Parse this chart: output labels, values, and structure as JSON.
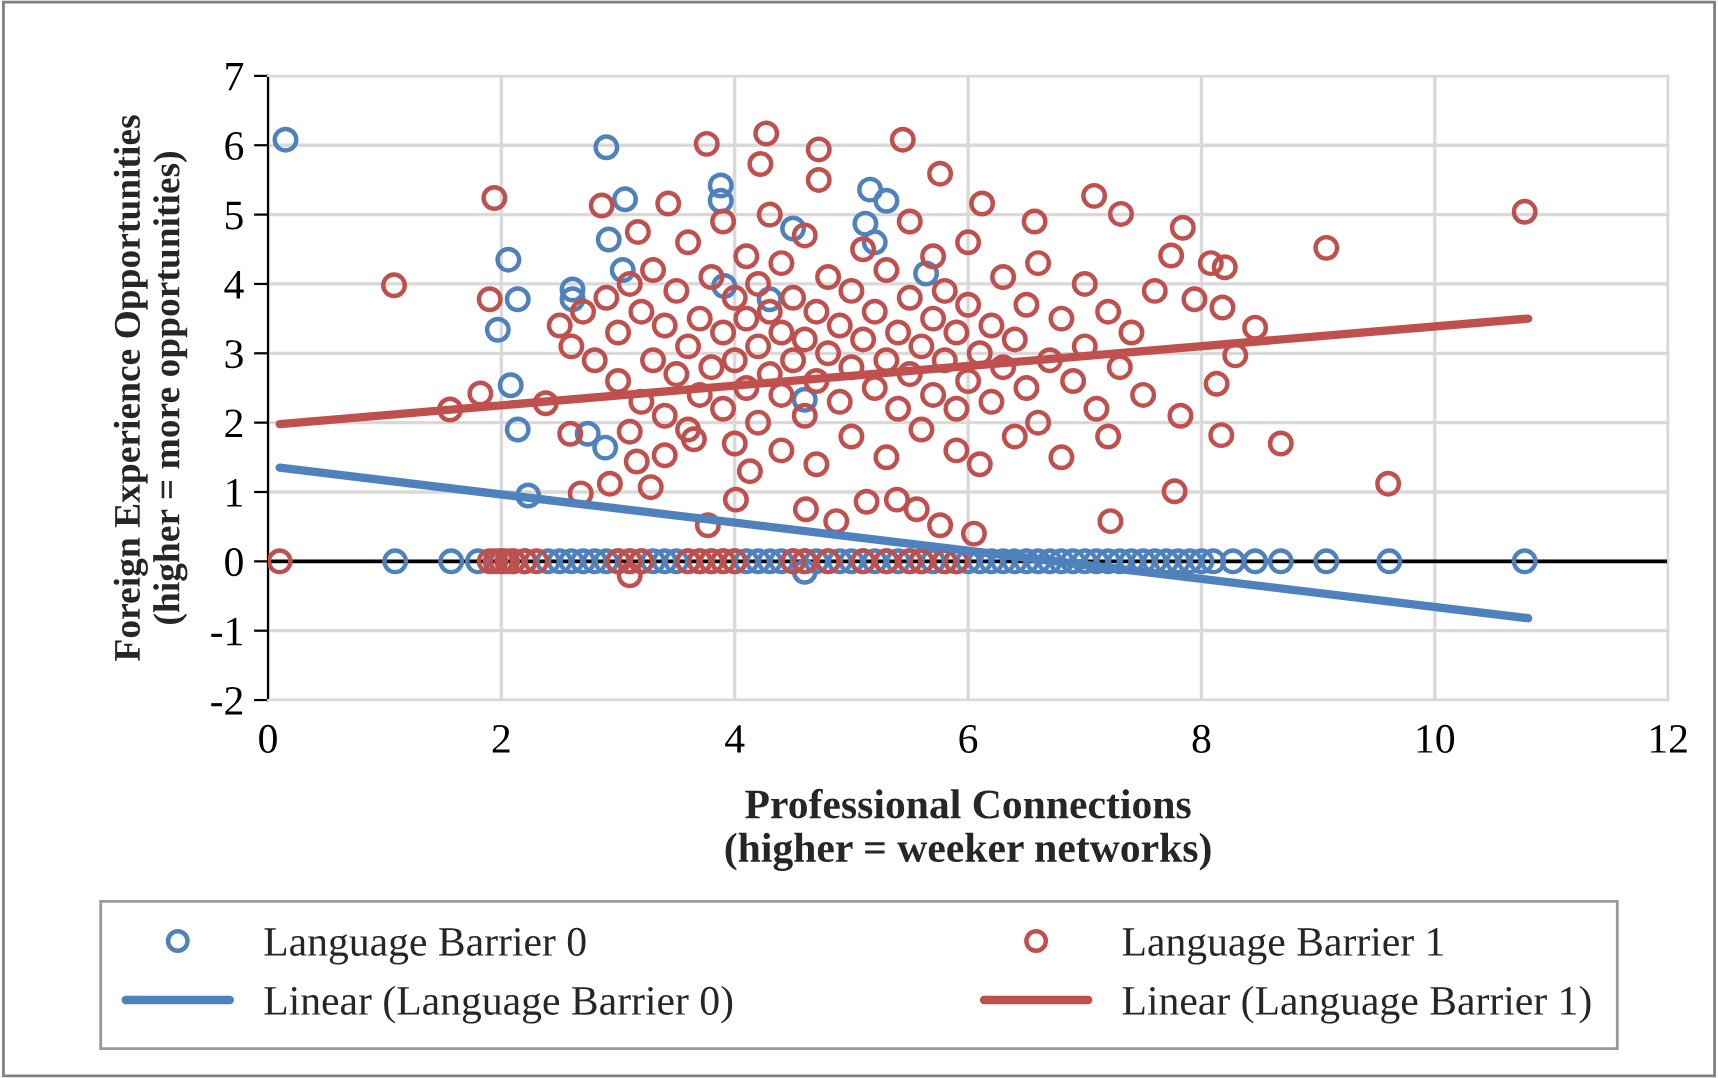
{
  "chart_data": {
    "type": "scatter",
    "xlabel": "Professional Connections\n(higher = weeker networks)",
    "ylabel": "Foreign Experience Opportunities\n(higher = more opportunities)",
    "xlim": [
      0,
      12
    ],
    "ylim": [
      -2,
      7
    ],
    "xticks": [
      0,
      2,
      4,
      6,
      8,
      10,
      12
    ],
    "yticks": [
      -2,
      -1,
      0,
      1,
      2,
      3,
      4,
      5,
      6,
      7
    ],
    "grid": true,
    "legend": "bottom",
    "marker": "circle",
    "ref_lines": [
      {
        "axis": "y",
        "value": 0,
        "color": "#000000"
      }
    ],
    "series": [
      {
        "name": "Language Barrier 0",
        "color": "#4f81bd",
        "x": [
          0.15,
          2.9,
          3.06,
          2.06,
          2.14,
          1.97,
          2.08,
          2.14,
          2.23,
          2.92,
          3.04,
          3.88,
          3.88,
          2.74,
          2.89,
          2.61,
          2.61,
          4.5,
          5.16,
          5.2,
          4.3,
          4.6,
          3.91,
          5.3,
          5.12,
          5.64,
          1.09,
          1.57,
          1.8,
          2.0,
          2.1,
          2.2,
          2.4,
          2.5,
          2.6,
          2.7,
          2.8,
          2.9,
          3.0,
          3.1,
          3.2,
          3.3,
          3.4,
          3.5,
          3.6,
          3.7,
          3.8,
          3.9,
          4.0,
          4.1,
          4.2,
          4.3,
          4.4,
          4.5,
          4.6,
          4.7,
          4.8,
          4.9,
          5.0,
          5.1,
          5.2,
          5.3,
          5.4,
          5.5,
          5.6,
          5.7,
          5.8,
          5.9,
          6.0,
          6.1,
          6.2,
          6.3,
          6.4,
          6.5,
          6.6,
          6.7,
          6.8,
          6.9,
          7.0,
          7.1,
          7.2,
          7.3,
          7.4,
          7.5,
          7.6,
          7.7,
          7.8,
          7.9,
          8.0,
          8.1,
          8.27,
          8.46,
          8.68,
          9.07,
          9.61,
          10.77,
          4.6
        ],
        "values": [
          6.08,
          5.97,
          5.22,
          4.35,
          3.78,
          3.34,
          2.54,
          1.9,
          0.95,
          4.64,
          4.2,
          5.42,
          5.2,
          1.84,
          1.64,
          3.92,
          3.78,
          4.8,
          5.36,
          4.6,
          3.78,
          2.33,
          3.97,
          5.2,
          4.87,
          4.15,
          0,
          0,
          0,
          0,
          0,
          0,
          0,
          0,
          0,
          0,
          0,
          0,
          0,
          0,
          0,
          0,
          0,
          0,
          0,
          0,
          0,
          0,
          0,
          0,
          0,
          0,
          0,
          0,
          0,
          0,
          0,
          0,
          0,
          0,
          0,
          0,
          0,
          0,
          0,
          0,
          0,
          0,
          0,
          0,
          0,
          0,
          0,
          0,
          0,
          0,
          0,
          0,
          0,
          0,
          0,
          0,
          0,
          0,
          0,
          0,
          0,
          0,
          0,
          0,
          0,
          0,
          0,
          0,
          0,
          0,
          -0.15
        ]
      },
      {
        "name": "Language Barrier 1",
        "color": "#c0504d",
        "x": [
          0.1,
          1.08,
          1.94,
          1.9,
          1.56,
          1.82,
          10.77,
          9.07,
          9.6,
          8.68,
          8.17,
          8.46,
          8.29,
          8.13,
          7.82,
          7.84,
          8.08,
          8.2,
          7.74,
          7.94,
          8.18,
          7.77,
          7.22,
          7.08,
          7.31,
          6.57,
          5.44,
          5.76,
          6.12,
          4.27,
          3.76,
          4.22,
          4.72,
          3.43,
          2.86,
          3.17,
          4.72,
          3.77,
          4.13,
          4.61,
          4.87,
          5.76,
          6.05,
          2.68,
          2.93,
          3.28,
          2.38,
          2.59,
          3.1,
          3.16,
          3.4,
          3.65,
          4.01,
          5.13,
          5.39,
          5.56,
          2.5,
          2.6,
          2.7,
          2.8,
          2.9,
          3.0,
          3.0,
          3.1,
          3.2,
          3.2,
          3.3,
          3.3,
          3.4,
          3.4,
          3.5,
          3.5,
          3.6,
          3.6,
          3.6,
          3.7,
          3.7,
          3.8,
          3.8,
          3.9,
          3.9,
          3.9,
          4.0,
          4.0,
          4.0,
          4.1,
          4.1,
          4.1,
          4.2,
          4.2,
          4.2,
          4.3,
          4.3,
          4.3,
          4.4,
          4.4,
          4.4,
          4.4,
          4.5,
          4.5,
          4.6,
          4.6,
          4.6,
          4.7,
          4.7,
          4.7,
          4.8,
          4.8,
          4.9,
          4.9,
          5.0,
          5.0,
          5.0,
          5.1,
          5.1,
          5.2,
          5.2,
          5.3,
          5.3,
          5.3,
          5.4,
          5.4,
          5.5,
          5.5,
          5.5,
          5.6,
          5.6,
          5.7,
          5.7,
          5.7,
          5.8,
          5.8,
          5.9,
          5.9,
          5.9,
          6.0,
          6.0,
          6.0,
          6.1,
          6.1,
          6.2,
          6.2,
          6.3,
          6.3,
          6.4,
          6.4,
          6.5,
          6.5,
          6.6,
          6.6,
          6.7,
          6.8,
          6.8,
          6.9,
          7.0,
          7.0,
          7.1,
          7.2,
          7.2,
          7.3,
          7.4,
          7.5,
          7.6,
          1.9,
          1.95,
          2.0,
          2.05,
          2.1,
          2.2,
          2.3,
          3.0,
          3.1,
          3.2,
          3.6,
          3.7,
          3.8,
          3.9,
          4.0,
          4.5,
          4.6,
          4.8,
          5.1,
          5.3,
          5.5,
          5.6,
          5.8,
          5.9,
          3.1
        ],
        "values": [
          0,
          3.98,
          5.24,
          3.78,
          2.19,
          2.42,
          5.04,
          4.52,
          1.12,
          1.7,
          1.82,
          3.37,
          2.97,
          2.56,
          2.1,
          4.81,
          4.3,
          4.24,
          4.41,
          3.78,
          3.66,
          1.01,
          0.58,
          5.27,
          5.01,
          4.9,
          6.08,
          5.59,
          5.16,
          6.17,
          6.02,
          5.73,
          5.94,
          5.16,
          5.13,
          4.75,
          5.5,
          0.52,
          1.3,
          0.75,
          0.58,
          0.52,
          0.4,
          0.98,
          1.12,
          1.07,
          2.28,
          1.84,
          1.87,
          1.44,
          1.53,
          1.76,
          0.89,
          0.86,
          0.89,
          0.75,
          3.4,
          3.1,
          3.6,
          2.9,
          3.8,
          2.6,
          3.3,
          4.0,
          2.3,
          3.6,
          2.9,
          4.2,
          2.1,
          3.4,
          2.7,
          3.9,
          1.9,
          3.1,
          4.6,
          2.4,
          3.5,
          2.8,
          4.1,
          2.2,
          3.3,
          4.9,
          1.7,
          2.9,
          3.8,
          2.5,
          3.5,
          4.4,
          2.0,
          3.1,
          4.0,
          2.7,
          3.6,
          5.0,
          1.6,
          2.4,
          3.3,
          4.3,
          2.9,
          3.8,
          2.1,
          3.2,
          4.7,
          1.4,
          2.6,
          3.6,
          3.0,
          4.1,
          2.3,
          3.4,
          1.8,
          2.8,
          3.9,
          3.2,
          4.5,
          2.5,
          3.6,
          1.5,
          2.9,
          4.2,
          2.2,
          3.3,
          2.7,
          3.8,
          4.9,
          1.9,
          3.1,
          2.4,
          3.5,
          4.4,
          2.9,
          3.9,
          1.6,
          2.2,
          3.3,
          2.6,
          3.7,
          4.6,
          3.0,
          1.4,
          2.3,
          3.4,
          2.8,
          4.1,
          1.8,
          3.2,
          2.5,
          3.7,
          2.0,
          4.3,
          2.9,
          3.5,
          1.5,
          2.6,
          3.1,
          4.0,
          2.2,
          3.6,
          1.8,
          2.8,
          3.3,
          2.4,
          3.9,
          0,
          0,
          0,
          0,
          0,
          0,
          0,
          0,
          0,
          0,
          0,
          0,
          0,
          0,
          0,
          0,
          0,
          0,
          0,
          0,
          0,
          0,
          0,
          0,
          -0.2
        ]
      },
      {
        "name": "Linear (Language Barrier 0)",
        "type": "line",
        "color": "#4f81bd",
        "marker": "none",
        "line_style": "solid",
        "x": [
          0.1,
          10.8
        ],
        "values": [
          1.35,
          -0.82
        ]
      },
      {
        "name": "Linear (Language Barrier 1)",
        "type": "line",
        "color": "#c0504d",
        "marker": "none",
        "line_style": "solid",
        "x": [
          0.1,
          10.8
        ],
        "values": [
          1.98,
          3.5
        ]
      }
    ]
  }
}
